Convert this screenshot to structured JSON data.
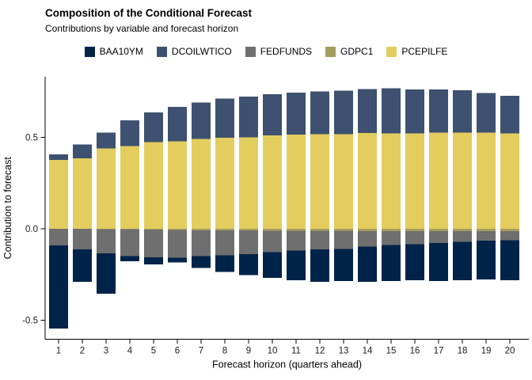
{
  "title": "Composition of the Conditional Forecast",
  "subtitle": "Contributions by variable and forecast horizon",
  "chart_data": {
    "type": "bar",
    "stacked": true,
    "title": "Composition of the Conditional Forecast",
    "subtitle": "Contributions by variable and forecast horizon",
    "xlabel": "Forecast horizon (quarters ahead)",
    "ylabel": "Contribution to forecast",
    "categories": [
      "1",
      "2",
      "3",
      "4",
      "5",
      "6",
      "7",
      "8",
      "9",
      "10",
      "11",
      "12",
      "13",
      "14",
      "15",
      "16",
      "17",
      "18",
      "19",
      "20"
    ],
    "series": [
      {
        "name": "BAA10YM",
        "color": "#002349",
        "values": [
          -0.454,
          -0.177,
          -0.221,
          -0.028,
          -0.039,
          -0.026,
          -0.065,
          -0.089,
          -0.115,
          -0.141,
          -0.161,
          -0.176,
          -0.176,
          -0.192,
          -0.198,
          -0.197,
          -0.207,
          -0.209,
          -0.212,
          -0.219
        ]
      },
      {
        "name": "DCOILWTICO",
        "color": "#3e5170",
        "values": [
          0.03,
          0.077,
          0.087,
          0.139,
          0.163,
          0.188,
          0.2,
          0.216,
          0.223,
          0.224,
          0.23,
          0.234,
          0.239,
          0.239,
          0.247,
          0.239,
          0.234,
          0.233,
          0.217,
          0.205
        ]
      },
      {
        "name": "FEDFUNDS",
        "color": "#6f6f6f",
        "values": [
          -0.091,
          -0.112,
          -0.132,
          -0.146,
          -0.152,
          -0.153,
          -0.141,
          -0.137,
          -0.13,
          -0.117,
          -0.109,
          -0.102,
          -0.099,
          -0.086,
          -0.076,
          -0.072,
          -0.067,
          -0.06,
          -0.054,
          -0.05
        ]
      },
      {
        "name": "GDPC1",
        "color": "#a49d60",
        "values": [
          0.0,
          -0.001,
          -0.002,
          -0.003,
          -0.004,
          -0.006,
          -0.008,
          -0.009,
          -0.009,
          -0.01,
          -0.011,
          -0.011,
          -0.011,
          -0.012,
          -0.012,
          -0.012,
          -0.012,
          -0.012,
          -0.012,
          -0.012
        ]
      },
      {
        "name": "PCEPILFE",
        "color": "#e3cd5f",
        "values": [
          0.377,
          0.385,
          0.44,
          0.453,
          0.473,
          0.479,
          0.491,
          0.497,
          0.501,
          0.511,
          0.515,
          0.518,
          0.517,
          0.524,
          0.521,
          0.522,
          0.527,
          0.525,
          0.525,
          0.522
        ]
      }
    ],
    "positive_stack_order": [
      "PCEPILFE",
      "DCOILWTICO"
    ],
    "negative_stack_order": [
      "GDPC1",
      "FEDFUNDS",
      "BAA10YM"
    ],
    "yticks": [
      0.5,
      0.0,
      -0.5
    ],
    "ytick_labels": [
      "0.5",
      "0.0",
      "-0.5"
    ],
    "ylim": [
      -0.61,
      0.83
    ],
    "grid": false,
    "legend_position": "top",
    "axis_color": "#000000",
    "tick_label_color": "#1a1a1a"
  }
}
